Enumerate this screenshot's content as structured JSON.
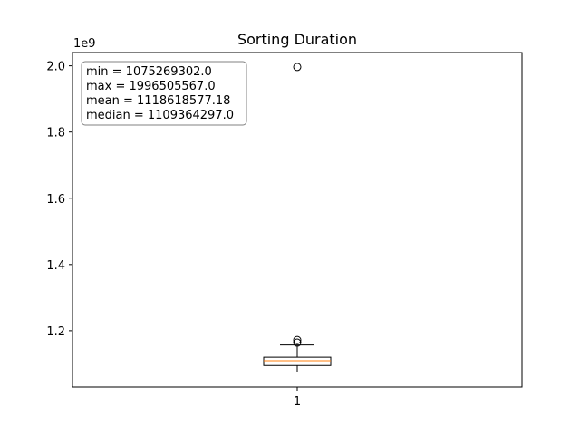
{
  "chart_data": {
    "type": "box",
    "title": "Sorting Duration",
    "xlabel": "",
    "ylabel": "",
    "y_offset_label": "1e9",
    "y_scale": 1000000000,
    "categories": [
      "1"
    ],
    "ylim": [
      1030000000,
      2040000000
    ],
    "y_ticks": [
      1200000000,
      1400000000,
      1600000000,
      1800000000,
      2000000000
    ],
    "y_tick_labels": [
      "1.2",
      "1.4",
      "1.6",
      "1.8",
      "2.0"
    ],
    "box": {
      "whisker_low": 1075269302,
      "q1": 1095000000,
      "median": 1109364297,
      "q3": 1120000000,
      "whisker_high": 1157000000,
      "outliers": [
        1164000000,
        1172000000,
        1996505567
      ]
    },
    "stats_box": {
      "lines": [
        "min = 1075269302.0",
        "max = 1996505567.0",
        "mean = 1118618577.18",
        "median = 1109364297.0"
      ],
      "placement": "top-left"
    },
    "colors": {
      "median": "#ff7f0e",
      "box": "#000000"
    },
    "grid": false
  }
}
